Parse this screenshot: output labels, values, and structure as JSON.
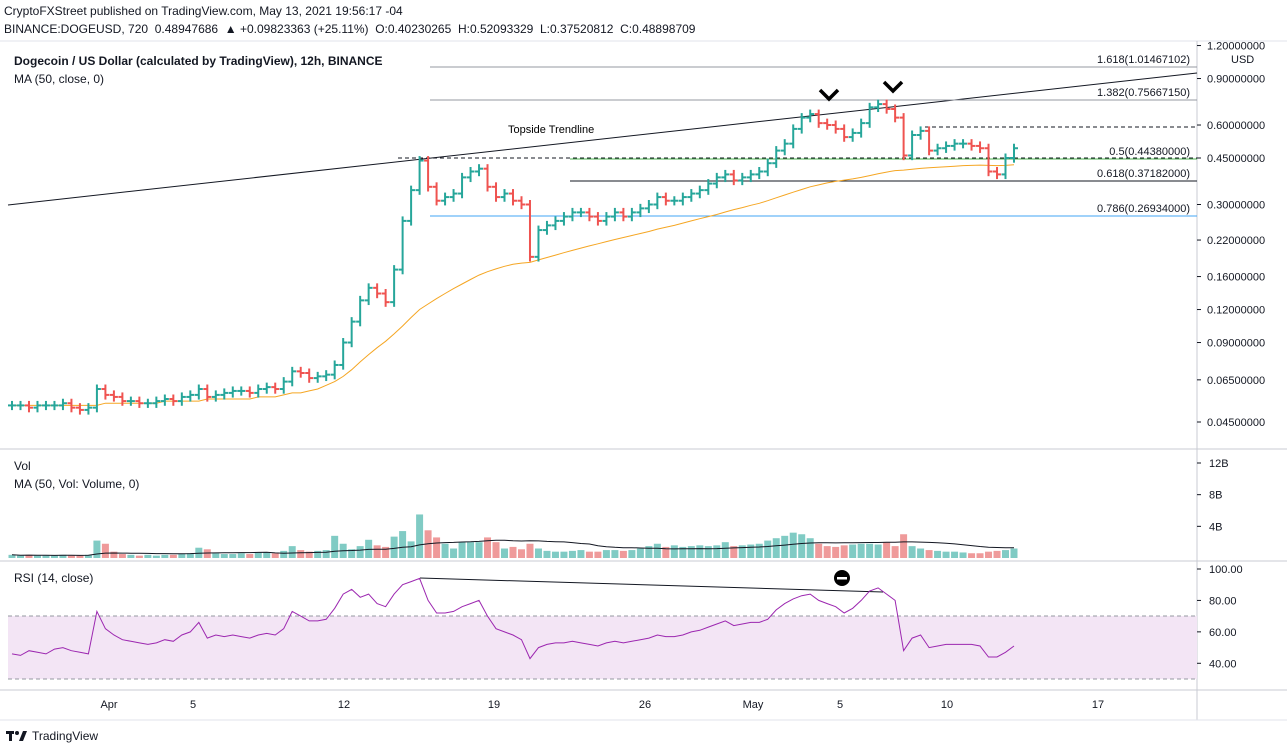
{
  "header": {
    "publisher": "CryptoFXStreet published on TradingView.com, May 13, 2021 19:56:17 -04",
    "symbol_line": "BINANCE:DOGEUSD, 720  0.48947686  ▲ +0.09823363 (+25.11%)  O:0.40230265  H:0.52093329  L:0.37520812  C:0.48898709"
  },
  "legend": {
    "title": "Dogecoin / US Dollar (calculated by TradingView), 12h, BINANCE",
    "ma": "MA (50, close, 0)",
    "vol": "Vol",
    "vol_ma": "MA (50, Vol: Volume, 0)",
    "rsi": "RSI (14, close)"
  },
  "footer": {
    "brand": "TradingView",
    "logo_icon": "tradingview-logo-icon"
  },
  "colors": {
    "up": "#26a69a",
    "down": "#ef5350",
    "ma": "#f5a623",
    "rsi": "#9c27b0",
    "rsi_band": "#f3e5f5",
    "fib_green": "#4caf50",
    "fib_blue": "#42a5f5"
  },
  "chart_data": {
    "type": "bar",
    "price_axis": {
      "currency": "USD",
      "scale": "log",
      "ticks": [
        "1.20000000",
        "0.90000000",
        "0.60000000",
        "0.45000000",
        "0.30000000",
        "0.22000000",
        "0.16000000",
        "0.12000000",
        "0.09000000",
        "0.06500000",
        "0.04500000"
      ]
    },
    "time_axis": {
      "ticks": [
        "Apr",
        "5",
        "12",
        "19",
        "26",
        "May",
        "5",
        "10",
        "17"
      ]
    },
    "annotations": {
      "trendline_label": "Topside Trendline",
      "fib": [
        {
          "label": "1.618(1.01467102)",
          "value": 1.01467102
        },
        {
          "label": "1.382(0.75667150)",
          "value": 0.7566715
        },
        {
          "label": "0.5(0.44380000)",
          "value": 0.4438
        },
        {
          "label": "0.618(0.37182000)",
          "value": 0.37182
        },
        {
          "label": "0.786(0.26934000)",
          "value": 0.26934
        }
      ]
    },
    "volume_axis": {
      "ticks": [
        "12B",
        "8B",
        "4B"
      ]
    },
    "rsi_axis": {
      "ticks": [
        "100.00",
        "80.00",
        "60.00",
        "40.00"
      ],
      "band": [
        30,
        70
      ]
    },
    "price": {
      "close": [
        0.052,
        0.052,
        0.051,
        0.052,
        0.052,
        0.052,
        0.053,
        0.051,
        0.05,
        0.051,
        0.06,
        0.057,
        0.056,
        0.054,
        0.054,
        0.053,
        0.053,
        0.054,
        0.055,
        0.054,
        0.056,
        0.057,
        0.06,
        0.056,
        0.057,
        0.058,
        0.059,
        0.059,
        0.058,
        0.06,
        0.061,
        0.06,
        0.064,
        0.07,
        0.069,
        0.066,
        0.067,
        0.068,
        0.074,
        0.09,
        0.108,
        0.13,
        0.145,
        0.138,
        0.128,
        0.17,
        0.26,
        0.34,
        0.44,
        0.35,
        0.31,
        0.32,
        0.33,
        0.38,
        0.4,
        0.41,
        0.35,
        0.32,
        0.33,
        0.31,
        0.3,
        0.19,
        0.24,
        0.25,
        0.26,
        0.27,
        0.28,
        0.28,
        0.27,
        0.26,
        0.27,
        0.28,
        0.27,
        0.28,
        0.29,
        0.3,
        0.32,
        0.31,
        0.31,
        0.32,
        0.33,
        0.34,
        0.36,
        0.38,
        0.39,
        0.37,
        0.38,
        0.39,
        0.4,
        0.43,
        0.48,
        0.51,
        0.58,
        0.64,
        0.66,
        0.61,
        0.6,
        0.58,
        0.54,
        0.56,
        0.61,
        0.7,
        0.72,
        0.69,
        0.64,
        0.46,
        0.55,
        0.57,
        0.48,
        0.49,
        0.5,
        0.51,
        0.51,
        0.5,
        0.49,
        0.4,
        0.39,
        0.45,
        0.49
      ],
      "ma50": [
        0.052,
        0.052,
        0.052,
        0.052,
        0.052,
        0.052,
        0.052,
        0.052,
        0.052,
        0.052,
        0.052,
        0.053,
        0.053,
        0.053,
        0.053,
        0.053,
        0.053,
        0.053,
        0.054,
        0.054,
        0.054,
        0.054,
        0.054,
        0.055,
        0.055,
        0.055,
        0.055,
        0.055,
        0.055,
        0.056,
        0.056,
        0.056,
        0.057,
        0.058,
        0.058,
        0.059,
        0.06,
        0.062,
        0.064,
        0.067,
        0.071,
        0.076,
        0.081,
        0.086,
        0.091,
        0.097,
        0.104,
        0.112,
        0.12,
        0.126,
        0.132,
        0.138,
        0.144,
        0.15,
        0.156,
        0.162,
        0.167,
        0.171,
        0.175,
        0.178,
        0.18,
        0.181,
        0.185,
        0.189,
        0.193,
        0.197,
        0.201,
        0.205,
        0.209,
        0.213,
        0.217,
        0.221,
        0.225,
        0.229,
        0.233,
        0.237,
        0.242,
        0.246,
        0.25,
        0.255,
        0.26,
        0.265,
        0.27,
        0.275,
        0.281,
        0.287,
        0.292,
        0.298,
        0.303,
        0.31,
        0.318,
        0.326,
        0.334,
        0.342,
        0.35,
        0.356,
        0.362,
        0.367,
        0.371,
        0.375,
        0.38,
        0.386,
        0.392,
        0.398,
        0.403,
        0.405,
        0.408,
        0.411,
        0.413,
        0.415,
        0.417,
        0.419,
        0.421,
        0.422,
        0.423,
        0.422,
        0.421,
        0.422,
        0.424
      ],
      "volume_bn": [
        0.4,
        0.3,
        0.4,
        0.3,
        0.3,
        0.3,
        0.4,
        0.3,
        0.3,
        0.4,
        2.2,
        1.8,
        0.8,
        0.5,
        0.4,
        0.3,
        0.4,
        0.3,
        0.4,
        0.4,
        0.5,
        0.6,
        1.3,
        1.1,
        0.6,
        0.5,
        0.5,
        0.6,
        0.5,
        0.7,
        0.7,
        0.6,
        0.9,
        1.5,
        1.0,
        0.8,
        0.9,
        1.0,
        2.8,
        1.8,
        1.1,
        1.5,
        2.3,
        1.6,
        1.4,
        2.7,
        3.4,
        2.1,
        5.5,
        3.5,
        2.6,
        1.8,
        1.2,
        2.0,
        2.0,
        2.0,
        2.6,
        2.0,
        1.2,
        1.4,
        1.1,
        1.8,
        1.2,
        0.9,
        0.8,
        0.8,
        0.9,
        1.0,
        0.8,
        0.8,
        1.0,
        1.0,
        0.9,
        1.0,
        1.2,
        1.5,
        1.8,
        1.4,
        1.6,
        1.4,
        1.5,
        1.6,
        1.5,
        1.6,
        2.0,
        1.5,
        1.6,
        1.7,
        1.8,
        2.2,
        2.5,
        2.8,
        3.2,
        3.0,
        2.5,
        1.8,
        1.5,
        1.4,
        1.6,
        1.7,
        1.8,
        1.8,
        1.7,
        2.0,
        1.5,
        3.0,
        1.5,
        1.2,
        1.0,
        0.9,
        0.8,
        0.8,
        0.7,
        0.6,
        0.6,
        0.8,
        0.9,
        1.0,
        1.2
      ],
      "rsi": [
        46,
        45,
        48,
        47,
        46,
        49,
        50,
        48,
        47,
        46,
        73,
        62,
        58,
        55,
        54,
        53,
        52,
        53,
        55,
        54,
        58,
        60,
        66,
        56,
        58,
        57,
        58,
        57,
        56,
        58,
        59,
        58,
        62,
        73,
        70,
        67,
        67,
        68,
        75,
        84,
        87,
        82,
        84,
        78,
        76,
        84,
        90,
        92,
        94,
        80,
        72,
        72,
        73,
        76,
        78,
        80,
        70,
        62,
        60,
        58,
        55,
        43,
        50,
        52,
        53,
        53,
        54,
        53,
        52,
        51,
        53,
        54,
        53,
        54,
        55,
        56,
        58,
        57,
        57,
        58,
        60,
        61,
        63,
        65,
        67,
        64,
        65,
        66,
        66,
        68,
        74,
        78,
        81,
        83,
        84,
        80,
        78,
        76,
        72,
        75,
        80,
        86,
        88,
        84,
        80,
        48,
        56,
        58,
        50,
        51,
        52,
        52,
        52,
        52,
        51,
        44,
        44,
        47,
        51
      ]
    }
  }
}
